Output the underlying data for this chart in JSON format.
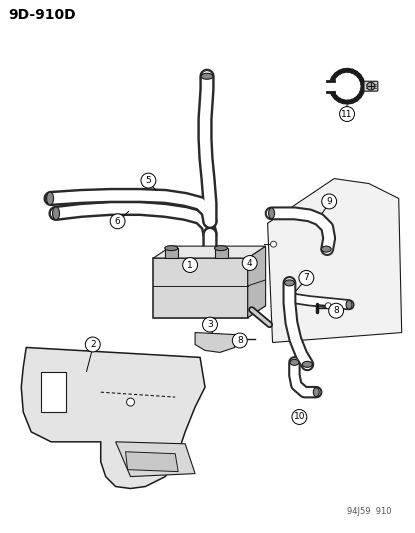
{
  "title": "9D-910D",
  "background_color": "#ffffff",
  "line_color": "#1a1a1a",
  "figsize": [
    4.15,
    5.33
  ],
  "dpi": 100,
  "watermark": "94J59  910"
}
